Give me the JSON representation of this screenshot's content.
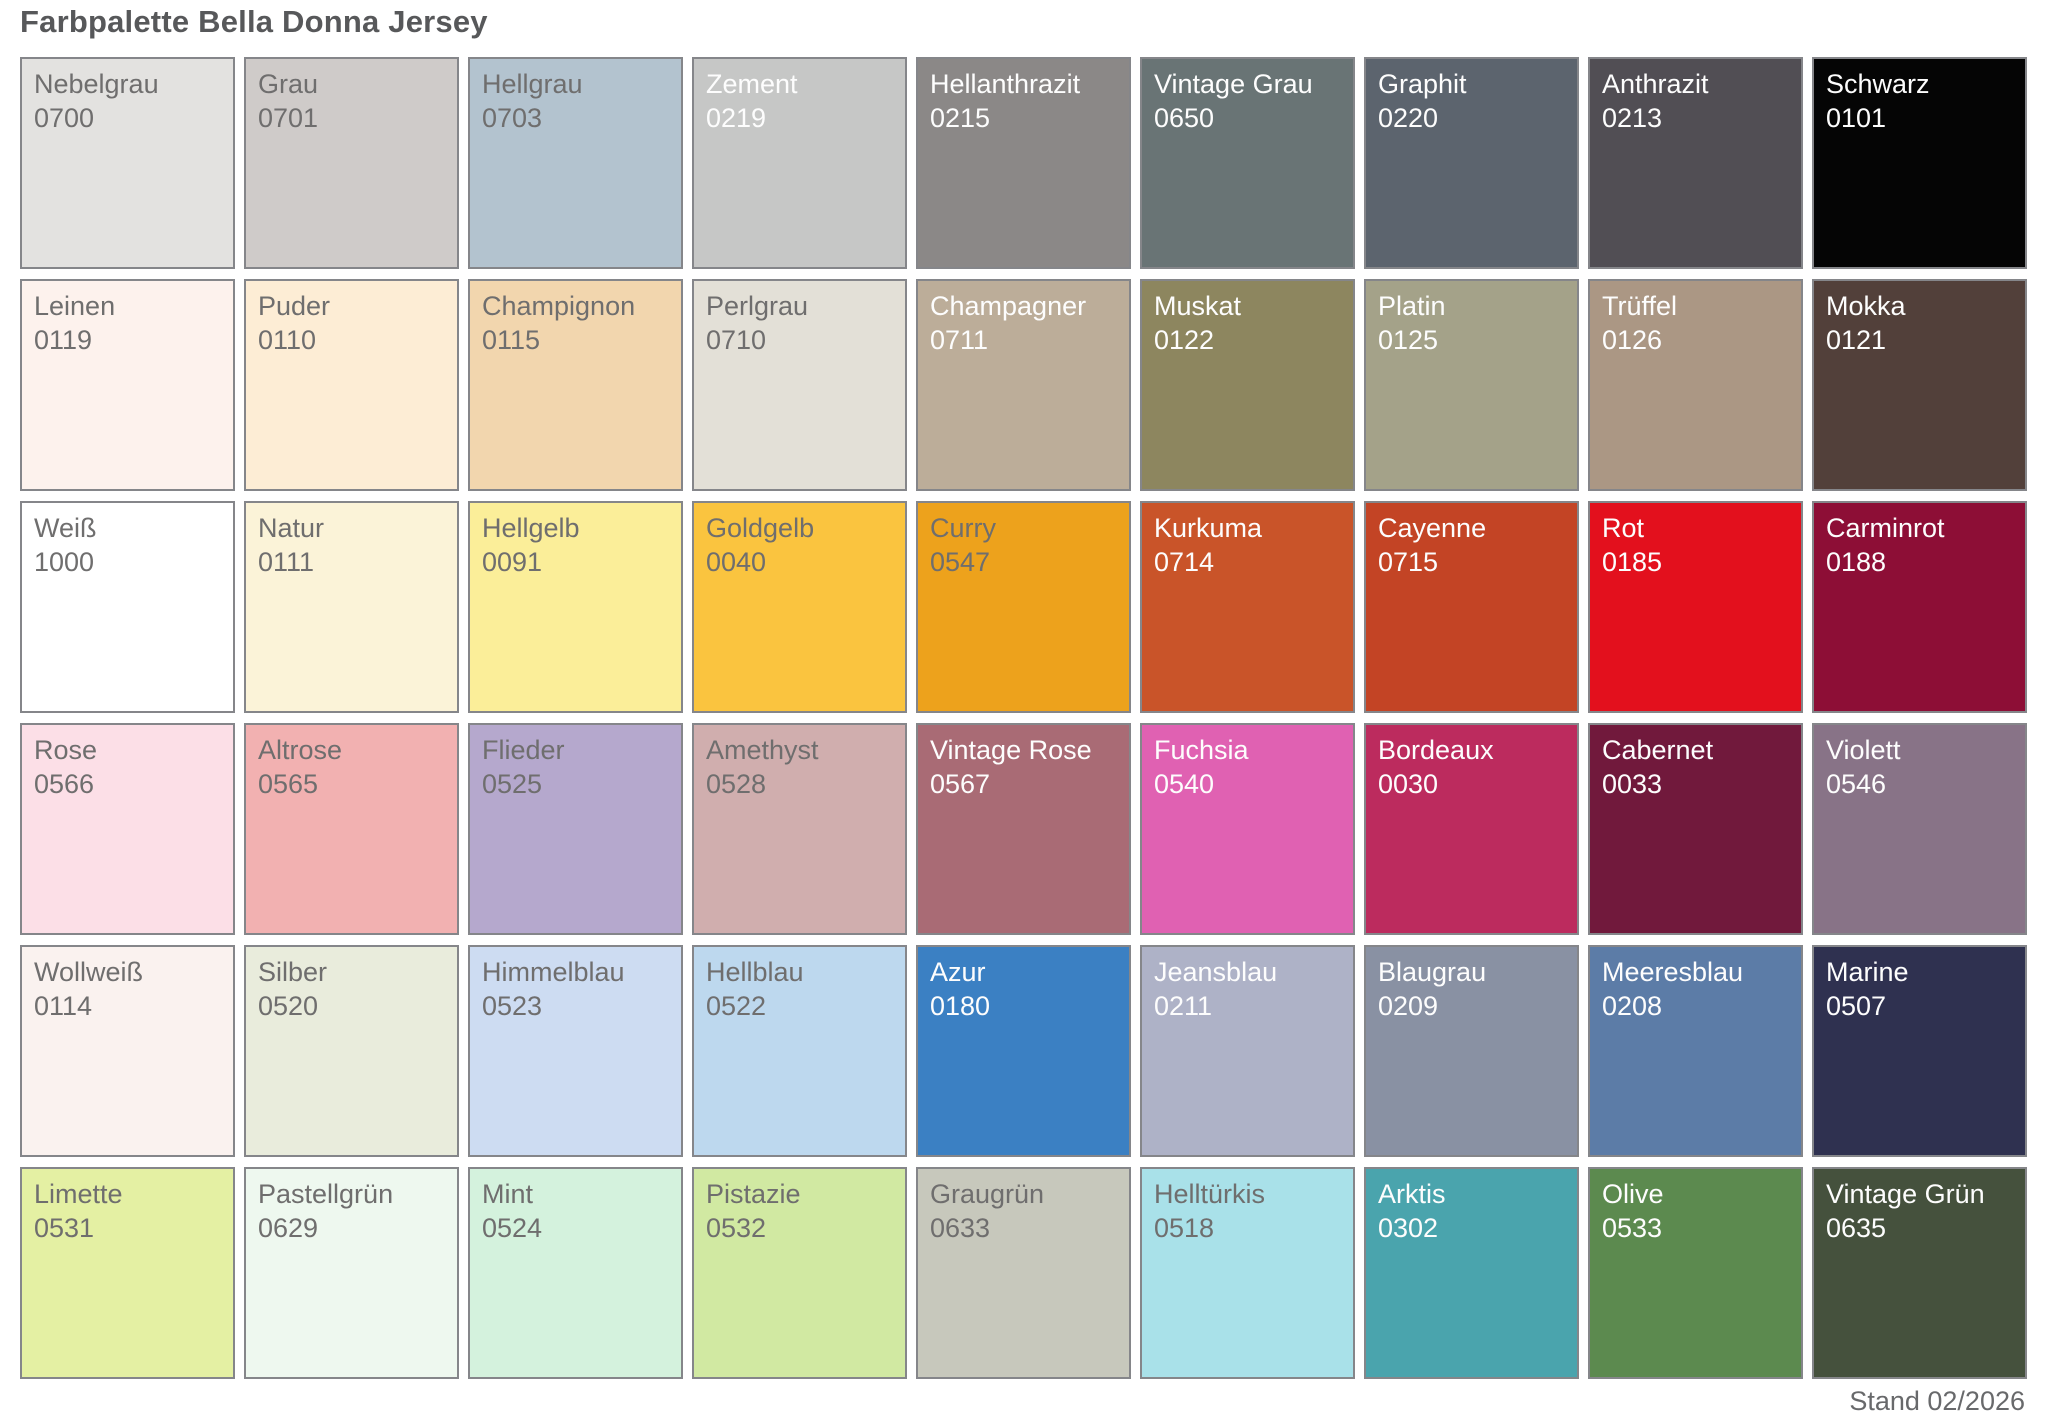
{
  "title": "Farbpalette Bella Donna Jersey",
  "footer": "Stand 02/2026",
  "palette": {
    "label_dark_color": "#6f6e6e",
    "label_light_color": "#fdfdfd",
    "swatch_border_color": "#85868a",
    "rows": [
      [
        {
          "name": "Nebelgrau",
          "code": "0700",
          "bg": "#e3e2e0",
          "label_style": "dark"
        },
        {
          "name": "Grau",
          "code": "0701",
          "bg": "#cfcbc9",
          "label_style": "dark"
        },
        {
          "name": "Hellgrau",
          "code": "0703",
          "bg": "#b3c3cf",
          "label_style": "dark"
        },
        {
          "name": "Zement",
          "code": "0219",
          "bg": "#c6c7c6",
          "label_style": "light"
        },
        {
          "name": "Hellanthrazit",
          "code": "0215",
          "bg": "#8b8887",
          "label_style": "light"
        },
        {
          "name": "Vintage Grau",
          "code": "0650",
          "bg": "#697475",
          "label_style": "light"
        },
        {
          "name": "Graphit",
          "code": "0220",
          "bg": "#5c646e",
          "label_style": "light"
        },
        {
          "name": "Anthrazit",
          "code": "0213",
          "bg": "#514e54",
          "label_style": "light"
        },
        {
          "name": "Schwarz",
          "code": "0101",
          "bg": "#050505",
          "label_style": "light"
        }
      ],
      [
        {
          "name": "Leinen",
          "code": "0119",
          "bg": "#fdf2ed",
          "label_style": "dark"
        },
        {
          "name": "Puder",
          "code": "0110",
          "bg": "#fdedd5",
          "label_style": "dark"
        },
        {
          "name": "Champignon",
          "code": "0115",
          "bg": "#f2d6ae",
          "label_style": "dark"
        },
        {
          "name": "Perlgrau",
          "code": "0710",
          "bg": "#e3e0d7",
          "label_style": "dark"
        },
        {
          "name": "Champagner",
          "code": "0711",
          "bg": "#bcad99",
          "label_style": "light"
        },
        {
          "name": "Muskat",
          "code": "0122",
          "bg": "#8d865f",
          "label_style": "light"
        },
        {
          "name": "Platin",
          "code": "0125",
          "bg": "#a4a289",
          "label_style": "light"
        },
        {
          "name": "Trüffel",
          "code": "0126",
          "bg": "#ab9784",
          "label_style": "light"
        },
        {
          "name": "Mokka",
          "code": "0121",
          "bg": "#52403a",
          "label_style": "light"
        }
      ],
      [
        {
          "name": "Weiß",
          "code": "1000",
          "bg": "#ffffff",
          "label_style": "dark"
        },
        {
          "name": "Natur",
          "code": "0111",
          "bg": "#fbf3d8",
          "label_style": "dark"
        },
        {
          "name": "Hellgelb",
          "code": "0091",
          "bg": "#fbee99",
          "label_style": "dark"
        },
        {
          "name": "Goldgelb",
          "code": "0040",
          "bg": "#fac43f",
          "label_style": "dark"
        },
        {
          "name": "Curry",
          "code": "0547",
          "bg": "#eda21c",
          "label_style": "dark"
        },
        {
          "name": "Kurkuma",
          "code": "0714",
          "bg": "#c95429",
          "label_style": "light"
        },
        {
          "name": "Cayenne",
          "code": "0715",
          "bg": "#c34425",
          "label_style": "light"
        },
        {
          "name": "Rot",
          "code": "0185",
          "bg": "#e3101d",
          "label_style": "light"
        },
        {
          "name": "Carminrot",
          "code": "0188",
          "bg": "#8d0e36",
          "label_style": "light"
        }
      ],
      [
        {
          "name": "Rose",
          "code": "0566",
          "bg": "#fcdfe7",
          "label_style": "dark"
        },
        {
          "name": "Altrose",
          "code": "0565",
          "bg": "#f2b1b1",
          "label_style": "dark"
        },
        {
          "name": "Flieder",
          "code": "0525",
          "bg": "#b5a8cd",
          "label_style": "dark"
        },
        {
          "name": "Amethyst",
          "code": "0528",
          "bg": "#d0aeae",
          "label_style": "dark"
        },
        {
          "name": "Vintage Rose",
          "code": "0567",
          "bg": "#a96b75",
          "label_style": "light"
        },
        {
          "name": "Fuchsia",
          "code": "0540",
          "bg": "#e061b2",
          "label_style": "light"
        },
        {
          "name": "Bordeaux",
          "code": "0030",
          "bg": "#bc2b5e",
          "label_style": "light"
        },
        {
          "name": "Cabernet",
          "code": "0033",
          "bg": "#71193c",
          "label_style": "light"
        },
        {
          "name": "Violett",
          "code": "0546",
          "bg": "#887387",
          "label_style": "light"
        }
      ],
      [
        {
          "name": "Wollweiß",
          "code": "0114",
          "bg": "#faf2ef",
          "label_style": "dark"
        },
        {
          "name": "Silber",
          "code": "0520",
          "bg": "#e9ecdc",
          "label_style": "dark"
        },
        {
          "name": "Himmelblau",
          "code": "0523",
          "bg": "#cddcf2",
          "label_style": "dark"
        },
        {
          "name": "Hellblau",
          "code": "0522",
          "bg": "#bdd8ee",
          "label_style": "dark"
        },
        {
          "name": "Azur",
          "code": "0180",
          "bg": "#3b80c3",
          "label_style": "light"
        },
        {
          "name": "Jeansblau",
          "code": "0211",
          "bg": "#aeb2c7",
          "label_style": "light"
        },
        {
          "name": "Blaugrau",
          "code": "0209",
          "bg": "#8991a3",
          "label_style": "light"
        },
        {
          "name": "Meeresblau",
          "code": "0208",
          "bg": "#5c7ca7",
          "label_style": "light"
        },
        {
          "name": "Marine",
          "code": "0507",
          "bg": "#2f3150",
          "label_style": "light"
        }
      ],
      [
        {
          "name": "Limette",
          "code": "0531",
          "bg": "#e4f0a3",
          "label_style": "dark"
        },
        {
          "name": "Pastellgrün",
          "code": "0629",
          "bg": "#eef8ef",
          "label_style": "dark"
        },
        {
          "name": "Mint",
          "code": "0524",
          "bg": "#d4f2dd",
          "label_style": "dark"
        },
        {
          "name": "Pistazie",
          "code": "0532",
          "bg": "#d1e9a2",
          "label_style": "dark"
        },
        {
          "name": "Graugrün",
          "code": "0633",
          "bg": "#c7c8bc",
          "label_style": "dark"
        },
        {
          "name": "Helltürkis",
          "code": "0518",
          "bg": "#a9e1e9",
          "label_style": "dark"
        },
        {
          "name": "Arktis",
          "code": "0302",
          "bg": "#4aa4ad",
          "label_style": "light"
        },
        {
          "name": "Olive",
          "code": "0533",
          "bg": "#5c8a4f",
          "label_style": "light"
        },
        {
          "name": "Vintage Grün",
          "code": "0635",
          "bg": "#45513d",
          "label_style": "light"
        }
      ]
    ]
  }
}
